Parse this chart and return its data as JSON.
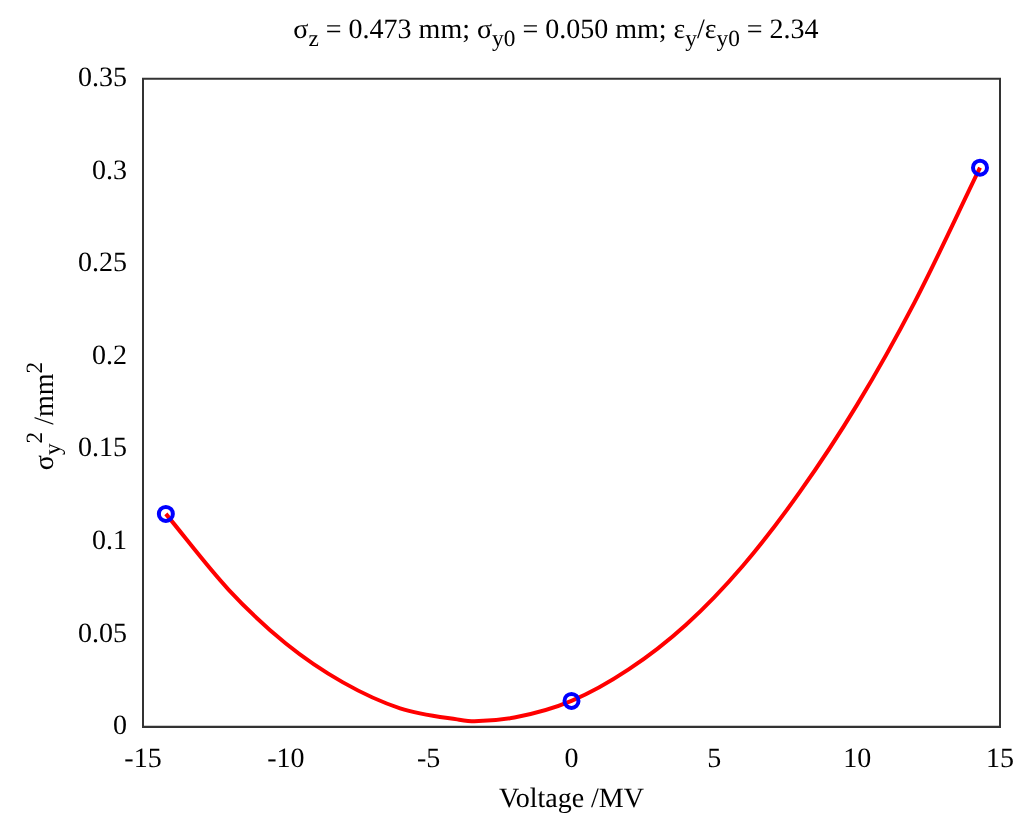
{
  "chart_data": {
    "type": "scatter",
    "title": "σ$_{z}$ =  0.473 mm;  σ$_{y0}$ =  0.050 mm;  ε$_{y}$/ε$_{y0}$ = 2.34",
    "xlabel": "Voltage /MV",
    "ylabel": "σ$_{y}$$^{2}$ /mm$^{2}$",
    "series": [
      {
        "type": "line",
        "color": "#ff0000",
        "marker": "none",
        "x": [
          -14.2,
          -12,
          -10,
          -8,
          -6,
          -4,
          -3.4,
          -2,
          0,
          2,
          4,
          6,
          8,
          10,
          12,
          14.3
        ],
        "values": [
          0.115,
          0.074,
          0.045,
          0.024,
          0.01,
          0.004,
          0.003,
          0.005,
          0.014,
          0.031,
          0.055,
          0.087,
          0.127,
          0.174,
          0.229,
          0.302
        ]
      },
      {
        "type": "scatter",
        "color": "#0000ff",
        "marker": "circle",
        "x": [
          -14.2,
          0,
          14.3
        ],
        "values": [
          0.115,
          0.014,
          0.302
        ]
      }
    ],
    "xlim": [
      -15,
      15
    ],
    "xticks": [
      -15,
      -10,
      -5,
      0,
      5,
      10,
      15
    ],
    "ylim": [
      0,
      0.35
    ],
    "yticks": [
      0,
      0.05,
      0.1,
      0.15,
      0.2,
      0.25,
      0.3,
      0.35
    ]
  }
}
